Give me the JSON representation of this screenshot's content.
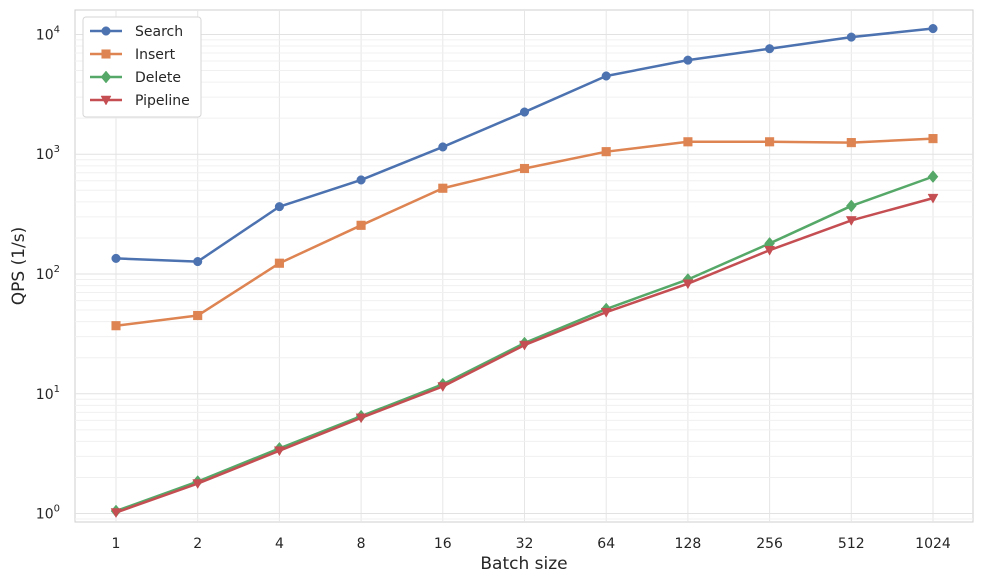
{
  "chart_data": {
    "type": "line",
    "xlabel": "Batch size",
    "ylabel": "QPS (1/s)",
    "categories": [
      "1",
      "2",
      "4",
      "8",
      "16",
      "32",
      "64",
      "128",
      "256",
      "512",
      "1024"
    ],
    "y_scale": "log",
    "ylim": [
      0.85,
      16000
    ],
    "y_ticks": [
      {
        "value": 1,
        "base": "10",
        "exp": "0"
      },
      {
        "value": 10,
        "base": "10",
        "exp": "1"
      },
      {
        "value": 100,
        "base": "10",
        "exp": "2"
      },
      {
        "value": 1000,
        "base": "10",
        "exp": "3"
      },
      {
        "value": 10000,
        "base": "10",
        "exp": "4"
      }
    ],
    "grid": true,
    "legend_position": "top-left",
    "series": [
      {
        "name": "Search",
        "color": "#4c72b0",
        "marker": "circle",
        "values": [
          135,
          127,
          365,
          610,
          1150,
          2250,
          4500,
          6100,
          7600,
          9500,
          11200
        ]
      },
      {
        "name": "Insert",
        "color": "#dd8452",
        "marker": "square",
        "values": [
          37,
          45,
          123,
          255,
          520,
          760,
          1050,
          1270,
          1270,
          1250,
          1350
        ]
      },
      {
        "name": "Delete",
        "color": "#55a868",
        "marker": "diamond",
        "values": [
          1.05,
          1.85,
          3.5,
          6.5,
          12,
          26.5,
          51,
          90,
          180,
          370,
          650
        ]
      },
      {
        "name": "Pipeline",
        "color": "#c44e52",
        "marker": "triangle-down",
        "values": [
          1.02,
          1.78,
          3.35,
          6.3,
          11.5,
          25.5,
          48,
          83,
          158,
          280,
          430
        ]
      }
    ]
  }
}
